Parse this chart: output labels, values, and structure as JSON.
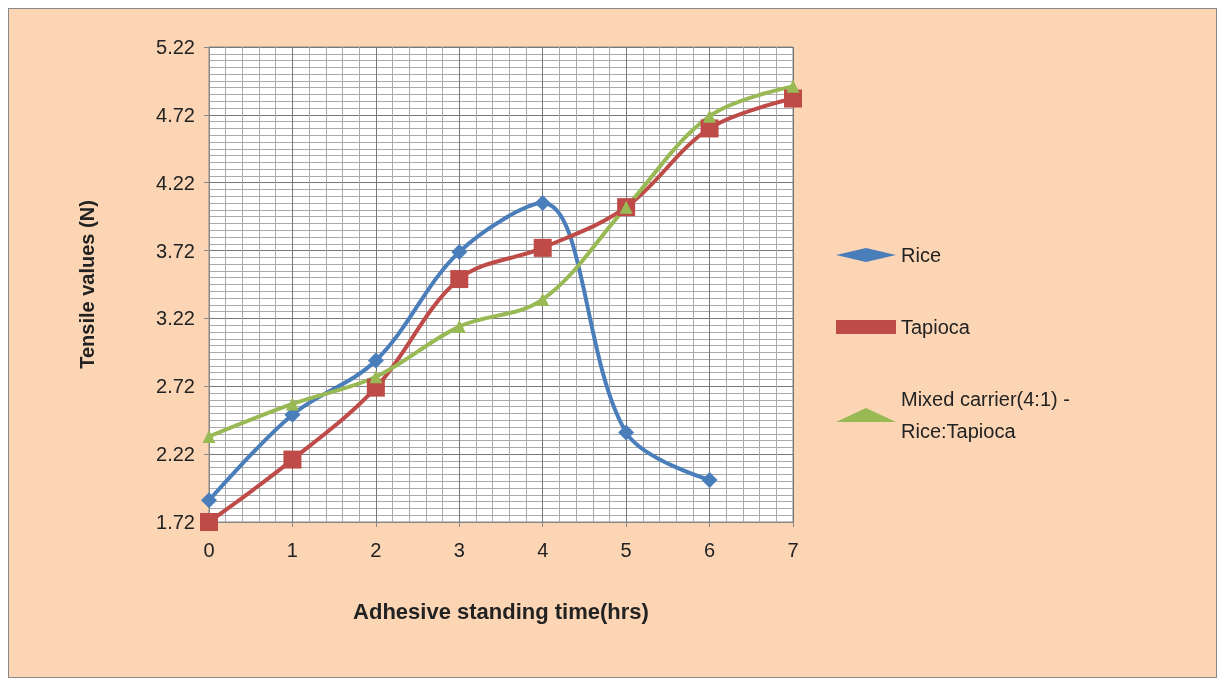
{
  "chart_data": {
    "type": "line",
    "xlabel": "Adhesive standing time(hrs)",
    "ylabel": "Tensile values (N)",
    "x": [
      0,
      1,
      2,
      3,
      4,
      5,
      6,
      7
    ],
    "series": [
      {
        "name": "Rice",
        "color": "#4a7ebb",
        "marker": "diamond",
        "values": [
          1.88,
          2.51,
          2.91,
          3.71,
          4.07,
          2.38,
          2.03,
          null
        ]
      },
      {
        "name": "Tapioca",
        "color": "#be4b48",
        "marker": "square",
        "values": [
          1.72,
          2.18,
          2.71,
          3.51,
          3.74,
          4.04,
          4.62,
          4.84
        ]
      },
      {
        "name": "Mixed carrier(4:1) - Rice:Tapioca",
        "color": "#98b954",
        "marker": "triangle",
        "values": [
          2.35,
          2.59,
          2.79,
          3.16,
          3.36,
          4.04,
          4.71,
          4.93
        ]
      }
    ],
    "xlim": [
      0,
      7
    ],
    "xticks": [
      0,
      1,
      2,
      3,
      4,
      5,
      6,
      7
    ],
    "ylim": [
      1.72,
      5.22
    ],
    "yticks": [
      1.72,
      2.22,
      2.72,
      3.22,
      3.72,
      4.22,
      4.72,
      5.22
    ],
    "grid": true,
    "legend": "right",
    "line_style": "solid"
  }
}
